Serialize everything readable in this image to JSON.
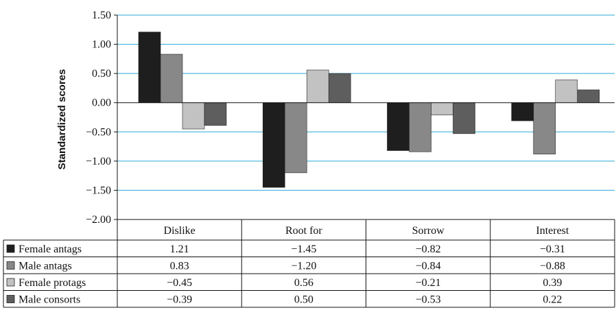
{
  "chart_data": {
    "type": "bar",
    "ylabel": "Standardized scores",
    "ylim": [
      -2.0,
      1.5
    ],
    "yticks": [
      "1.50",
      "1.00",
      "0.50",
      "0.00",
      "−0.50",
      "−1.00",
      "−1.50",
      "−2.00"
    ],
    "ytick_values": [
      1.5,
      1.0,
      0.5,
      0.0,
      -0.5,
      -1.0,
      -1.5,
      -2.0
    ],
    "grid": true,
    "legend": "data-table",
    "categories": [
      "Dislike",
      "Root for",
      "Sorrow",
      "Interest"
    ],
    "series": [
      {
        "name": "Female antags",
        "color": "#1e1e1e",
        "values": [
          1.21,
          -1.45,
          -0.82,
          -0.31
        ],
        "labels": [
          "1.21",
          "−1.45",
          "−0.82",
          "−0.31"
        ]
      },
      {
        "name": "Male antags",
        "color": "#888888",
        "values": [
          0.83,
          -1.2,
          -0.84,
          -0.88
        ],
        "labels": [
          "0.83",
          "−1.20",
          "−0.84",
          "−0.88"
        ]
      },
      {
        "name": "Female protags",
        "color": "#c2c2c2",
        "values": [
          -0.45,
          0.56,
          -0.21,
          0.39
        ],
        "labels": [
          "−0.45",
          "0.56",
          "−0.21",
          "0.39"
        ]
      },
      {
        "name": "Male consorts",
        "color": "#5e5e5e",
        "values": [
          -0.39,
          0.5,
          -0.53,
          0.22
        ],
        "labels": [
          "−0.39",
          "0.50",
          "−0.53",
          "0.22"
        ]
      }
    ],
    "gridline_color": "#29a9d8"
  }
}
